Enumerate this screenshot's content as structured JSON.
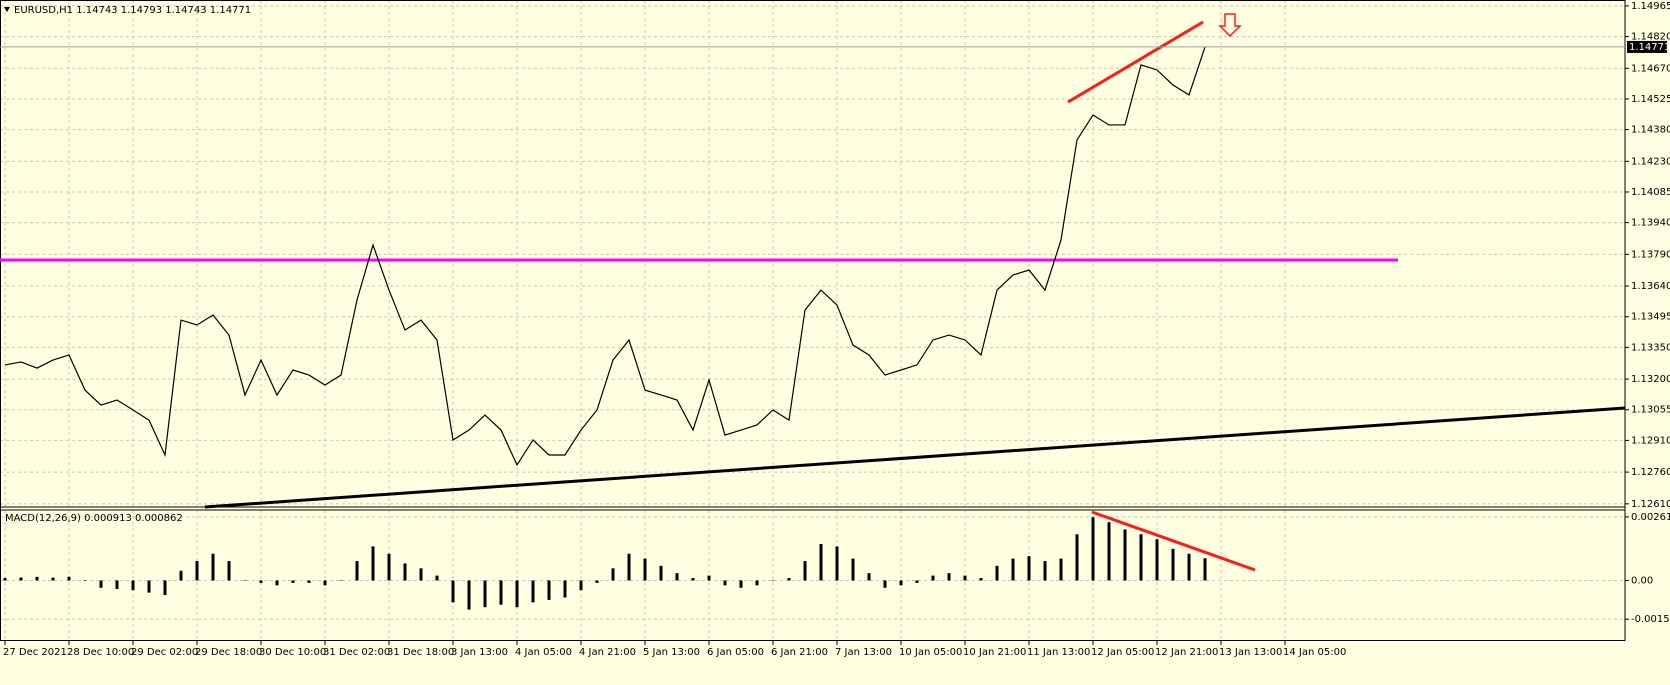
{
  "chart_data": [
    {
      "type": "line",
      "title": "EURUSD,H1  1.14743 1.14793 1.14743 1.14771",
      "categories": [
        "27 Dec 2021",
        null,
        null,
        null,
        "28 Dec 10:00",
        null,
        null,
        null,
        "29 Dec 02:00",
        null,
        null,
        null,
        "29 Dec 18:00",
        null,
        null,
        null,
        "30 Dec 10:00",
        null,
        null,
        null,
        "31 Dec 02:00",
        null,
        null,
        null,
        "31 Dec 18:00",
        null,
        null,
        null,
        "3 Jan 13:00",
        null,
        null,
        null,
        "4 Jan 05:00",
        null,
        null,
        null,
        "4 Jan 21:00",
        null,
        null,
        null,
        "5 Jan 13:00",
        null,
        null,
        null,
        "6 Jan 05:00",
        null,
        null,
        null,
        "6 Jan 21:00",
        null,
        null,
        null,
        "7 Jan 13:00",
        null,
        null,
        null,
        "10 Jan 05:00",
        null,
        null,
        null,
        "10 Jan 21:00",
        null,
        null,
        null,
        "11 Jan 13:00",
        null,
        null,
        null,
        "12 Jan 05:00",
        null,
        null,
        null,
        "12 Jan 21:00",
        null,
        null,
        null,
        "13 Jan 13:00",
        null,
        null,
        null,
        "14 Jan 05:00"
      ],
      "values": [
        1.13267,
        1.13281,
        1.13252,
        1.1329,
        1.13314,
        1.13148,
        1.13077,
        1.13101,
        1.13054,
        1.13006,
        1.12841,
        1.13479,
        1.13456,
        1.13503,
        1.13408,
        1.13125,
        1.1329,
        1.13125,
        1.13243,
        1.13219,
        1.13172,
        1.13219,
        1.13574,
        1.13834,
        1.13621,
        1.13432,
        1.13479,
        1.13385,
        1.12912,
        1.12959,
        1.1303,
        1.12959,
        1.12794,
        1.12912,
        1.12841,
        1.12841,
        1.12959,
        1.13054,
        1.1329,
        1.13385,
        1.13148,
        1.13125,
        1.13101,
        1.12959,
        1.13196,
        1.12935,
        1.12959,
        1.12983,
        1.13054,
        1.13006,
        1.13527,
        1.13621,
        1.1355,
        1.13361,
        1.13314,
        1.13219,
        1.13243,
        1.13267,
        1.13385,
        1.13408,
        1.13385,
        1.13314,
        1.13621,
        1.13692,
        1.13716,
        1.13621,
        1.13858,
        1.14331,
        1.14449,
        1.14402,
        1.14402,
        1.14686,
        1.14662,
        1.14591,
        1.14544,
        1.14771,
        null,
        null,
        null,
        null,
        null
      ],
      "color": "#000000",
      "ylim": [
        1.12595,
        1.14993
      ],
      "yticks": [
        1.14965,
        {
          "value": 1.1482,
          "label": "1.14820"
        },
        {
          "value": 1.1467,
          "label": "1.14670"
        },
        1.14525,
        {
          "value": 1.1438,
          "label": "1.14380"
        },
        {
          "value": 1.1423,
          "label": "1.14230"
        },
        1.14085,
        {
          "value": 1.1394,
          "label": "1.13940"
        },
        {
          "value": 1.1379,
          "label": "1.13790"
        },
        {
          "value": 1.1364,
          "label": "1.13640"
        },
        1.13495,
        {
          "value": 1.1335,
          "label": "1.13350"
        },
        {
          "value": 1.132,
          "label": "1.13200"
        },
        1.13055,
        {
          "value": 1.1291,
          "label": "1.12910"
        },
        {
          "value": 1.1276,
          "label": "1.12760"
        },
        {
          "value": 1.1261,
          "label": "1.12610"
        }
      ],
      "current_price": 1.14771,
      "grid": true
    },
    {
      "type": "bar",
      "title": "MACD(12,26,9) 0.000913 0.000862",
      "values": [
        0.0001,
        0.00012,
        0.00015,
        0.00012,
        0.00015,
        0.0,
        -0.0003,
        -0.00035,
        -0.0004,
        -0.0005,
        -0.0006,
        0.0004,
        0.0008,
        0.0011,
        0.0008,
        0.0,
        -0.0001,
        -0.0002,
        -0.0001,
        -0.0001,
        -0.0002,
        0.0,
        0.0008,
        0.0014,
        0.0011,
        0.0007,
        0.0005,
        0.0002,
        -0.0009,
        -0.0012,
        -0.0011,
        -0.001,
        -0.0011,
        -0.0009,
        -0.0008,
        -0.0007,
        -0.0004,
        -0.0001,
        0.0005,
        0.0011,
        0.0009,
        0.0006,
        0.0003,
        0.0001,
        0.0002,
        -0.0002,
        -0.0003,
        -0.0002,
        0.0,
        0.0001,
        0.0008,
        0.0015,
        0.0014,
        0.0009,
        0.0003,
        -0.0003,
        -0.0002,
        -0.0001,
        0.0002,
        0.0003,
        0.0002,
        0.0001,
        0.0006,
        0.0009,
        0.001,
        0.0008,
        0.0009,
        0.0019,
        0.0026,
        0.0024,
        0.0021,
        0.0019,
        0.0017,
        0.0013,
        0.0011,
        0.000913,
        null,
        null,
        null,
        null,
        null
      ],
      "color": "#000000",
      "ylim": [
        -0.00245,
        0.0029
      ],
      "yticks": [
        0.002615,
        {
          "value": 0,
          "label": "0.00"
        },
        -0.001593
      ],
      "grid": true
    }
  ]
}
